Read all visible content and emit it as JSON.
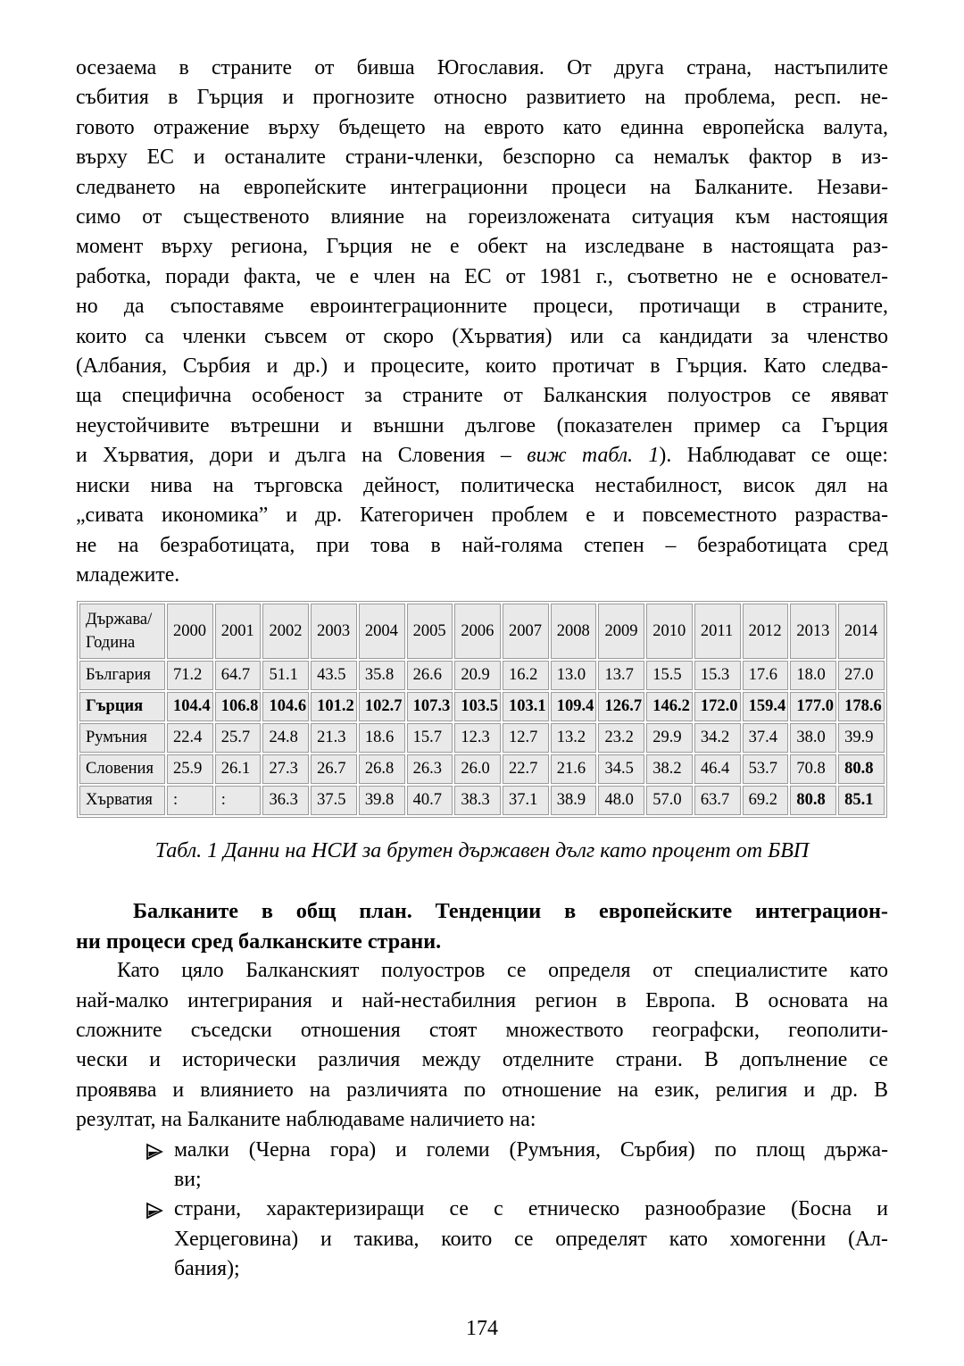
{
  "page": {
    "number": "174"
  },
  "style": {
    "page_bg": "#ffffff",
    "text_color": "#000000",
    "table_cell_bg": "#e9e9e9",
    "table_border": "#9b9b9b"
  },
  "icons": {
    "bullet_marker": "arrowhead-right-icon"
  },
  "p1": {
    "lines": [
      "осезаема в страните от бивша Югославия. От друга страна, настъпилите",
      "събития в Гърция и прогнозите относно развитието на проблема, респ. не-",
      "говото отражение върху бъдещето на еврото като единна европейска валута,",
      "върху ЕС и останалите страни-членки, безспорно са немалък фактор в из-",
      "следването на европейските интеграционни процеси на Балканите. Незави-",
      "симо от същественото влияние на гореизложената ситуация към настоящия",
      "момент върху региона, Гърция не е обект на изследване в настоящата раз-",
      "работка, поради факта, че е член на ЕС от 1981 г., съответно не е основател-",
      "но да съпоставяме евроинтеграционните процеси, протичащи в страните,",
      "които са членки съвсем от скоро (Хърватия) или са кандидати за членство",
      "(Албания, Сърбия и др.) и процесите, които протичат в Гърция. Като следва-",
      "ща специфична особеност за страните от Балканския полуостров се явяват",
      "неустойчивите вътрешни и външни дългове (показателен пример са Гърция",
      {
        "runs": [
          {
            "t": "и Хърватия, дори и дълга на Словения – "
          },
          {
            "t": "виж табл. 1",
            "i": true
          },
          {
            "t": "). Наблюдават се още:"
          }
        ]
      },
      "ниски нива на търговска дейност, политическа нестабилност, висок дял на",
      "„сивата икономика” и др. Категоричен проблем е и повсеместното разраства-",
      "не на безработицата, при това в най-голяма степен – безработицата сред",
      "младежите."
    ]
  },
  "table": {
    "header": {
      "line1": "Държава/",
      "line2": "Година"
    },
    "years": [
      "2000",
      "2001",
      "2002",
      "2003",
      "2004",
      "2005",
      "2006",
      "2007",
      "2008",
      "2009",
      "2010",
      "2011",
      "2012",
      "2013",
      "2014"
    ],
    "rows": [
      {
        "label": "България",
        "bold": false,
        "bold_cols": [],
        "values": [
          "71.2",
          "64.7",
          "51.1",
          "43.5",
          "35.8",
          "26.6",
          "20.9",
          "16.2",
          "13.0",
          "13.7",
          "15.5",
          "15.3",
          "17.6",
          "18.0",
          "27.0"
        ]
      },
      {
        "label": "Гърция",
        "bold": true,
        "bold_cols": [],
        "values": [
          "104.4",
          "106.8",
          "104.6",
          "101.2",
          "102.7",
          "107.3",
          "103.5",
          "103.1",
          "109.4",
          "126.7",
          "146.2",
          "172.0",
          "159.4",
          "177.0",
          "178.6"
        ]
      },
      {
        "label": "Румъния",
        "bold": false,
        "bold_cols": [],
        "values": [
          "22.4",
          "25.7",
          "24.8",
          "21.3",
          "18.6",
          "15.7",
          "12.3",
          "12.7",
          "13.2",
          "23.2",
          "29.9",
          "34.2",
          "37.4",
          "38.0",
          "39.9"
        ]
      },
      {
        "label": "Словения",
        "bold": false,
        "bold_cols": [
          14
        ],
        "values": [
          "25.9",
          "26.1",
          "27.3",
          "26.7",
          "26.8",
          "26.3",
          "26.0",
          "22.7",
          "21.6",
          "34.5",
          "38.2",
          "46.4",
          "53.7",
          "70.8",
          "80.8"
        ]
      },
      {
        "label": "Хърватия",
        "bold": false,
        "bold_cols": [
          13,
          14
        ],
        "values": [
          ":",
          ":",
          "36.3",
          "37.5",
          "39.8",
          "40.7",
          "38.3",
          "37.1",
          "38.9",
          "48.0",
          "57.0",
          "63.7",
          "69.2",
          "80.8",
          "85.1"
        ]
      }
    ]
  },
  "caption": {
    "text": "Табл. 1 Данни на НСИ за брутен държавен дълг като процент от БВП"
  },
  "heading": {
    "lines": [
      "Балканите в общ план. Тенденции в европейските интеграцион-",
      "ни процеси сред балканските страни."
    ]
  },
  "p2": {
    "lines": [
      "Като цяло Балканският полуостров се определя от специалистите като",
      "най-малко интегрирания и най-нестабилния регион в Европа. В основата на",
      "сложните съседски отношения стоят множеството географски, геополити-",
      "чески и исторически различия между отделните страни. В допълнение се",
      "проявява и влиянието на различията по отношение на език, религия и др. В",
      "резултат, на Балканите наблюдаваме наличието на:"
    ]
  },
  "bullets": {
    "items": [
      {
        "lines": [
          "малки (Черна гора) и големи (Румъния, Сърбия) по площ държа-",
          "ви;"
        ]
      },
      {
        "lines": [
          "страни, характеризиращи се с етническо разнообразие (Босна и",
          "Херцеговина) и такива, които се определят като хомогенни (Ал-",
          "бания);"
        ]
      }
    ]
  }
}
